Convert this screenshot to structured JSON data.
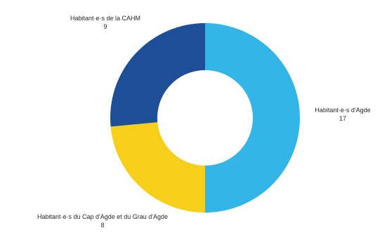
{
  "chart_data": {
    "type": "pie",
    "variant": "donut",
    "title": "",
    "slices": [
      {
        "label": "Habitant·e·s d'Agde",
        "value": 17,
        "color": "#33B5E8"
      },
      {
        "label": "Habitant·e·s du Cap d'Agde et du Grau d'Agde",
        "value": 8,
        "color": "#F6CF1B"
      },
      {
        "label": "Habitant·e·s de la CAHM",
        "value": 9,
        "color": "#1F4E99"
      }
    ],
    "start_angle": "top",
    "direction": "clockwise",
    "legend": "none"
  }
}
